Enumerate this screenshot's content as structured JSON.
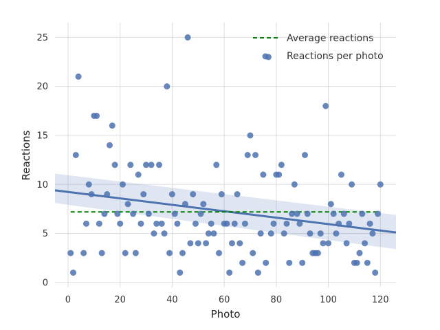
{
  "chart_data": {
    "type": "scatter",
    "xlabel": "Photo",
    "ylabel": "Reactions",
    "xlim": [
      -5,
      126
    ],
    "ylim": [
      -0.5,
      26.5
    ],
    "xticks": [
      0,
      20,
      40,
      60,
      80,
      100,
      120
    ],
    "yticks": [
      0,
      5,
      10,
      15,
      20,
      25
    ],
    "grid": true,
    "legend_position": "top-right",
    "colors": {
      "points": "#4c72b0",
      "regression": "#4c72b0",
      "average": "#008000",
      "grid": "#dddddd"
    },
    "series": [
      {
        "name": "Reactions per photo",
        "type": "scatter",
        "points": [
          [
            1,
            3
          ],
          [
            2,
            1
          ],
          [
            3,
            13
          ],
          [
            4,
            21
          ],
          [
            6,
            3
          ],
          [
            7,
            6
          ],
          [
            8,
            10
          ],
          [
            9,
            9
          ],
          [
            10,
            17
          ],
          [
            11,
            17
          ],
          [
            12,
            6
          ],
          [
            13,
            3
          ],
          [
            14,
            7
          ],
          [
            15,
            9
          ],
          [
            16,
            14
          ],
          [
            17,
            16
          ],
          [
            18,
            12
          ],
          [
            19,
            7
          ],
          [
            20,
            6
          ],
          [
            21,
            10
          ],
          [
            22,
            3
          ],
          [
            23,
            8
          ],
          [
            24,
            12
          ],
          [
            25,
            7
          ],
          [
            26,
            3
          ],
          [
            27,
            11
          ],
          [
            28,
            6
          ],
          [
            29,
            9
          ],
          [
            30,
            12
          ],
          [
            31,
            7
          ],
          [
            32,
            12
          ],
          [
            33,
            5
          ],
          [
            34,
            6
          ],
          [
            35,
            12
          ],
          [
            36,
            6
          ],
          [
            37,
            5
          ],
          [
            38,
            20
          ],
          [
            39,
            3
          ],
          [
            40,
            9
          ],
          [
            41,
            7
          ],
          [
            42,
            6
          ],
          [
            43,
            1
          ],
          [
            44,
            3
          ],
          [
            45,
            8
          ],
          [
            46,
            25
          ],
          [
            47,
            4
          ],
          [
            48,
            9
          ],
          [
            49,
            6
          ],
          [
            50,
            4
          ],
          [
            51,
            7
          ],
          [
            52,
            8
          ],
          [
            53,
            4
          ],
          [
            54,
            5
          ],
          [
            55,
            6
          ],
          [
            56,
            5
          ],
          [
            57,
            12
          ],
          [
            58,
            3
          ],
          [
            59,
            9
          ],
          [
            60,
            6
          ],
          [
            61,
            6
          ],
          [
            62,
            1
          ],
          [
            63,
            4
          ],
          [
            64,
            6
          ],
          [
            65,
            9
          ],
          [
            66,
            4
          ],
          [
            67,
            2
          ],
          [
            68,
            6
          ],
          [
            69,
            13
          ],
          [
            70,
            15
          ],
          [
            71,
            3
          ],
          [
            72,
            13
          ],
          [
            73,
            1
          ],
          [
            74,
            5
          ],
          [
            75,
            11
          ],
          [
            76,
            2
          ],
          [
            77,
            23
          ],
          [
            78,
            5
          ],
          [
            79,
            6
          ],
          [
            80,
            11
          ],
          [
            81,
            11
          ],
          [
            82,
            12
          ],
          [
            83,
            5
          ],
          [
            84,
            6
          ],
          [
            85,
            2
          ],
          [
            86,
            7
          ],
          [
            87,
            10
          ],
          [
            88,
            7
          ],
          [
            89,
            6
          ],
          [
            90,
            2
          ],
          [
            91,
            13
          ],
          [
            92,
            7
          ],
          [
            93,
            5
          ],
          [
            94,
            3
          ],
          [
            95,
            3
          ],
          [
            96,
            3
          ],
          [
            97,
            5
          ],
          [
            98,
            4
          ],
          [
            99,
            18
          ],
          [
            100,
            4
          ],
          [
            101,
            8
          ],
          [
            102,
            7
          ],
          [
            103,
            5
          ],
          [
            104,
            6
          ],
          [
            105,
            11
          ],
          [
            106,
            7
          ],
          [
            107,
            4
          ],
          [
            108,
            6
          ],
          [
            109,
            10
          ],
          [
            110,
            2
          ],
          [
            111,
            2
          ],
          [
            112,
            3
          ],
          [
            113,
            7
          ],
          [
            114,
            4
          ],
          [
            115,
            2
          ],
          [
            116,
            6
          ],
          [
            117,
            5
          ],
          [
            118,
            1
          ],
          [
            119,
            7
          ],
          [
            120,
            10
          ]
        ]
      },
      {
        "name": "Average reactions",
        "type": "line",
        "style": "dashed",
        "x": [
          1,
          120
        ],
        "y": [
          7.2,
          7.2
        ]
      },
      {
        "name": "",
        "type": "regression",
        "x": [
          -5,
          126
        ],
        "y": [
          9.4,
          5.1
        ],
        "ci_lower": [
          8.1,
          3.4
        ],
        "ci_upper": [
          11.1,
          6.9
        ]
      }
    ]
  }
}
